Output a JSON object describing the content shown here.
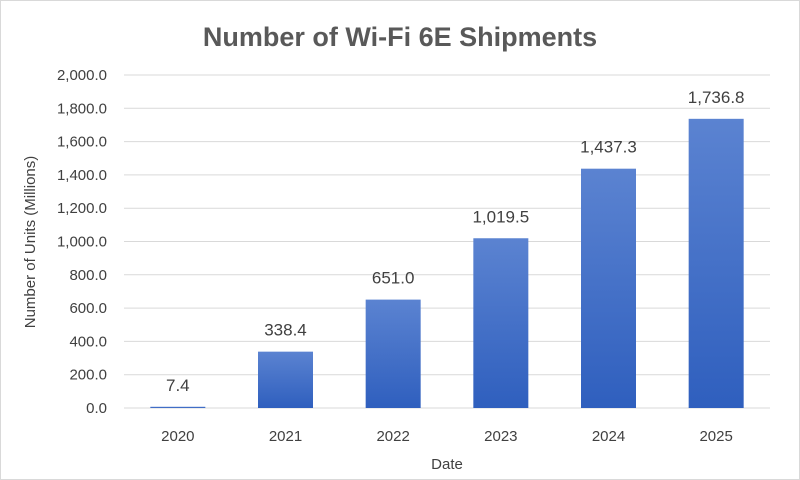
{
  "chart_data": {
    "type": "bar",
    "title": "Number of Wi-Fi 6E Shipments",
    "xlabel": "Date",
    "ylabel": "Number of Units (Millions)",
    "categories": [
      "2020",
      "2021",
      "2022",
      "2023",
      "2024",
      "2025"
    ],
    "values": [
      7.4,
      338.4,
      651.0,
      1019.5,
      1437.3,
      1736.8
    ],
    "data_labels": [
      "7.4",
      "338.4",
      "651.0",
      "1,019.5",
      "1,437.3",
      "1,736.8"
    ],
    "ylim": [
      0,
      2000
    ],
    "yticks": [
      0,
      200,
      400,
      600,
      800,
      1000,
      1200,
      1400,
      1600,
      1800,
      2000
    ],
    "ytick_labels": [
      "0.0",
      "200.0",
      "400.0",
      "600.0",
      "800.0",
      "1,000.0",
      "1,200.0",
      "1,400.0",
      "1,600.0",
      "1,800.0",
      "2,000.0"
    ],
    "grid": true,
    "legend": "none",
    "bar_color_top": "#5b83d1",
    "bar_color_bottom": "#2f5fbe"
  }
}
